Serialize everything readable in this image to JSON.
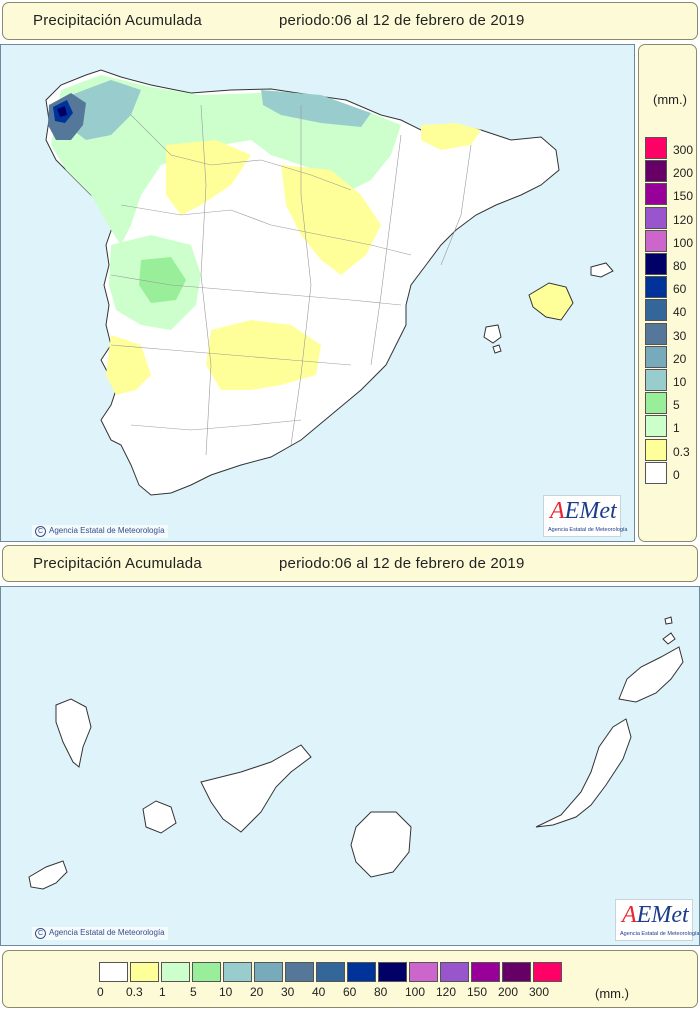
{
  "peninsula_panel": {
    "title": "Precipitación Acumulada",
    "period": "periodo:06 al 12 de febrero de 2019"
  },
  "canarias_panel": {
    "title": "Precipitación Acumulada",
    "period": "periodo:06 al 12 de febrero de 2019"
  },
  "credit": "Agencia Estatal de Meteorología",
  "logo": {
    "brand_a": "A",
    "brand_rest": "EMet",
    "subtitle": "Agencia Estatal de Meteorología"
  },
  "legend": {
    "unit": "(mm.)",
    "levels": [
      {
        "label": "0",
        "color": "#ffffff"
      },
      {
        "label": "0.3",
        "color": "#ffff99"
      },
      {
        "label": "1",
        "color": "#ccffcc"
      },
      {
        "label": "5",
        "color": "#99ee99"
      },
      {
        "label": "10",
        "color": "#99cccc"
      },
      {
        "label": "20",
        "color": "#77aabb"
      },
      {
        "label": "30",
        "color": "#557799"
      },
      {
        "label": "40",
        "color": "#336699"
      },
      {
        "label": "60",
        "color": "#003399"
      },
      {
        "label": "80",
        "color": "#000066"
      },
      {
        "label": "100",
        "color": "#cc66cc"
      },
      {
        "label": "120",
        "color": "#9955cc"
      },
      {
        "label": "150",
        "color": "#990099"
      },
      {
        "label": "200",
        "color": "#660066"
      },
      {
        "label": "300",
        "color": "#ff0066"
      }
    ]
  }
}
